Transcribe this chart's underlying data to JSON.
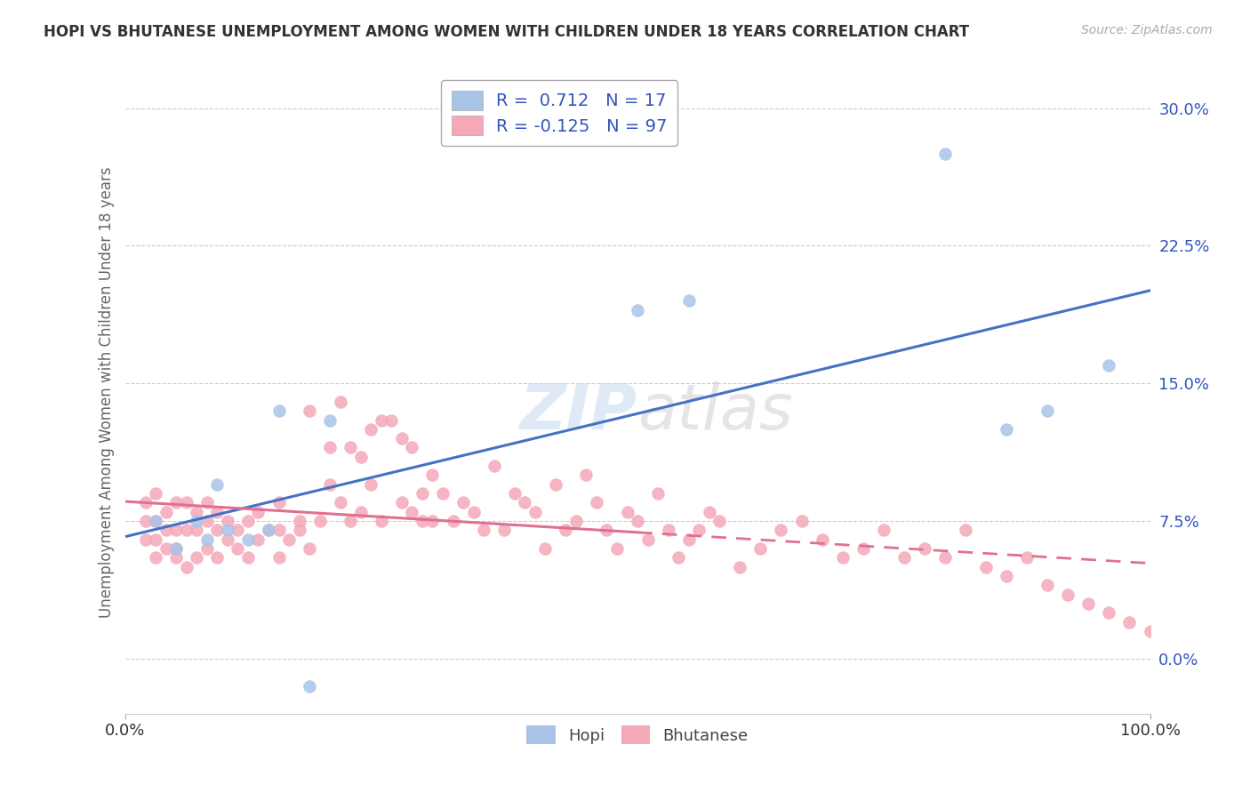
{
  "title": "HOPI VS BHUTANESE UNEMPLOYMENT AMONG WOMEN WITH CHILDREN UNDER 18 YEARS CORRELATION CHART",
  "source": "Source: ZipAtlas.com",
  "ylabel": "Unemployment Among Women with Children Under 18 years",
  "yticks": [
    0.0,
    7.5,
    15.0,
    22.5,
    30.0
  ],
  "xlim": [
    0,
    100
  ],
  "ylim": [
    -3,
    32
  ],
  "hopi_R": 0.712,
  "hopi_N": 17,
  "bhutanese_R": -0.125,
  "bhutanese_N": 97,
  "hopi_color": "#aac4e8",
  "bhutanese_color": "#f4a8b8",
  "hopi_line_color": "#4472c4",
  "bhutanese_line_color": "#e07090",
  "watermark_zip": "ZIP",
  "watermark_atlas": "atlas",
  "legend_color": "#3355bb",
  "hopi_x": [
    3,
    5,
    7,
    8,
    9,
    10,
    12,
    14,
    15,
    18,
    20,
    50,
    55,
    80,
    86,
    90,
    96
  ],
  "hopi_y": [
    7.5,
    6.0,
    7.5,
    6.5,
    9.5,
    7.0,
    6.5,
    7.0,
    13.5,
    -1.5,
    13.0,
    19.0,
    19.5,
    27.5,
    12.5,
    13.5,
    16.0
  ],
  "bhutanese_x": [
    2,
    2,
    2,
    3,
    3,
    3,
    3,
    4,
    4,
    4,
    5,
    5,
    5,
    5,
    6,
    6,
    6,
    7,
    7,
    7,
    8,
    8,
    8,
    9,
    9,
    9,
    10,
    10,
    11,
    11,
    12,
    12,
    13,
    13,
    14,
    15,
    15,
    15,
    16,
    17,
    17,
    18,
    18,
    19,
    20,
    20,
    21,
    21,
    22,
    22,
    23,
    23,
    24,
    24,
    25,
    25,
    26,
    27,
    27,
    28,
    28,
    29,
    29,
    30,
    30,
    31,
    32,
    33,
    34,
    35,
    36,
    37,
    38,
    39,
    40,
    41,
    42,
    43,
    44,
    45,
    46,
    47,
    48,
    49,
    50,
    51,
    52,
    53,
    54,
    55,
    56,
    57,
    58,
    60,
    62,
    64,
    66
  ],
  "bhutanese_y": [
    6.5,
    7.5,
    8.5,
    5.5,
    6.5,
    7.5,
    9.0,
    6.0,
    7.0,
    8.0,
    5.5,
    7.0,
    8.5,
    6.0,
    5.0,
    7.0,
    8.5,
    5.5,
    7.0,
    8.0,
    6.0,
    7.5,
    8.5,
    5.5,
    7.0,
    8.0,
    6.5,
    7.5,
    6.0,
    7.0,
    5.5,
    7.5,
    6.5,
    8.0,
    7.0,
    5.5,
    7.0,
    8.5,
    6.5,
    7.0,
    7.5,
    6.0,
    13.5,
    7.5,
    9.5,
    11.5,
    14.0,
    8.5,
    11.5,
    7.5,
    11.0,
    8.0,
    9.5,
    12.5,
    13.0,
    7.5,
    13.0,
    12.0,
    8.5,
    11.5,
    8.0,
    9.0,
    7.5,
    10.0,
    7.5,
    9.0,
    7.5,
    8.5,
    8.0,
    7.0,
    10.5,
    7.0,
    9.0,
    8.5,
    8.0,
    6.0,
    9.5,
    7.0,
    7.5,
    10.0,
    8.5,
    7.0,
    6.0,
    8.0,
    7.5,
    6.5,
    9.0,
    7.0,
    5.5,
    6.5,
    7.0,
    8.0,
    7.5,
    5.0,
    6.0,
    7.0,
    7.5
  ],
  "bhutanese_x2": [
    68,
    70,
    72,
    74,
    76,
    78,
    80,
    82,
    84,
    86,
    88,
    90,
    92,
    94,
    96,
    98,
    100
  ],
  "bhutanese_y2": [
    6.5,
    5.5,
    6.0,
    7.0,
    5.5,
    6.0,
    5.5,
    7.0,
    5.0,
    4.5,
    5.5,
    4.0,
    3.5,
    3.0,
    2.5,
    2.0,
    1.5
  ]
}
